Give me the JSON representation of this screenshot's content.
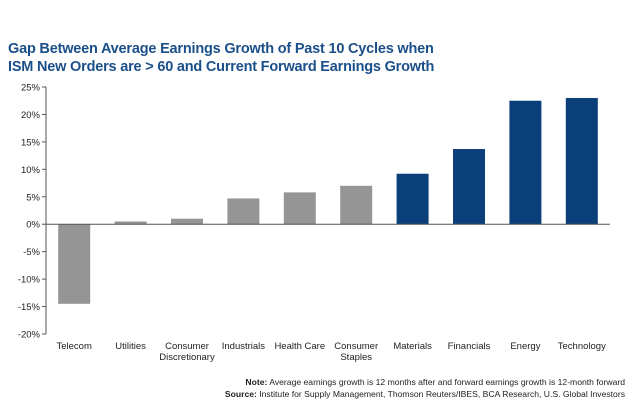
{
  "title_lines": [
    "Gap Between Average Earnings Growth of Past 10 Cycles when",
    "ISM New Orders are > 60 and Current Forward Earnings Growth"
  ],
  "colors": {
    "title": "#1b4f8a",
    "gray_bar": "#959595",
    "blue_bar": "#0b3f7a",
    "axis": "#555555"
  },
  "chart_data": {
    "type": "bar",
    "categories": [
      [
        "Telecom"
      ],
      [
        "Utilities"
      ],
      [
        "Consumer",
        "Discretionary"
      ],
      [
        "Industrials"
      ],
      [
        "Health Care"
      ],
      [
        "Consumer",
        "Staples"
      ],
      [
        "Materials"
      ],
      [
        "Financials"
      ],
      [
        "Energy"
      ],
      [
        "Technology"
      ]
    ],
    "values": [
      -14.5,
      0.5,
      1.0,
      4.7,
      5.8,
      7.0,
      9.2,
      13.7,
      22.5,
      23.0
    ],
    "bar_colors": [
      "gray",
      "gray",
      "gray",
      "gray",
      "gray",
      "gray",
      "blue",
      "blue",
      "blue",
      "blue"
    ],
    "ylim": [
      -20,
      25
    ],
    "yticks": [
      25,
      20,
      15,
      10,
      5,
      0,
      -5,
      -10,
      -15,
      -20
    ],
    "ytick_labels": [
      "25%",
      "20%",
      "15%",
      "10%",
      "5%",
      "0%",
      "-5%",
      "-10%",
      "-15%",
      "-20%"
    ],
    "grid": false
  },
  "note": {
    "label": "Note:",
    "text": " Average earnings growth is 12 months after and forward earnings growth is 12-month forward"
  },
  "source": {
    "label": "Source:",
    "text": " Institute for Supply Management, Thomson Reuters/IBES, BCA Research, U.S. Global Investors"
  }
}
